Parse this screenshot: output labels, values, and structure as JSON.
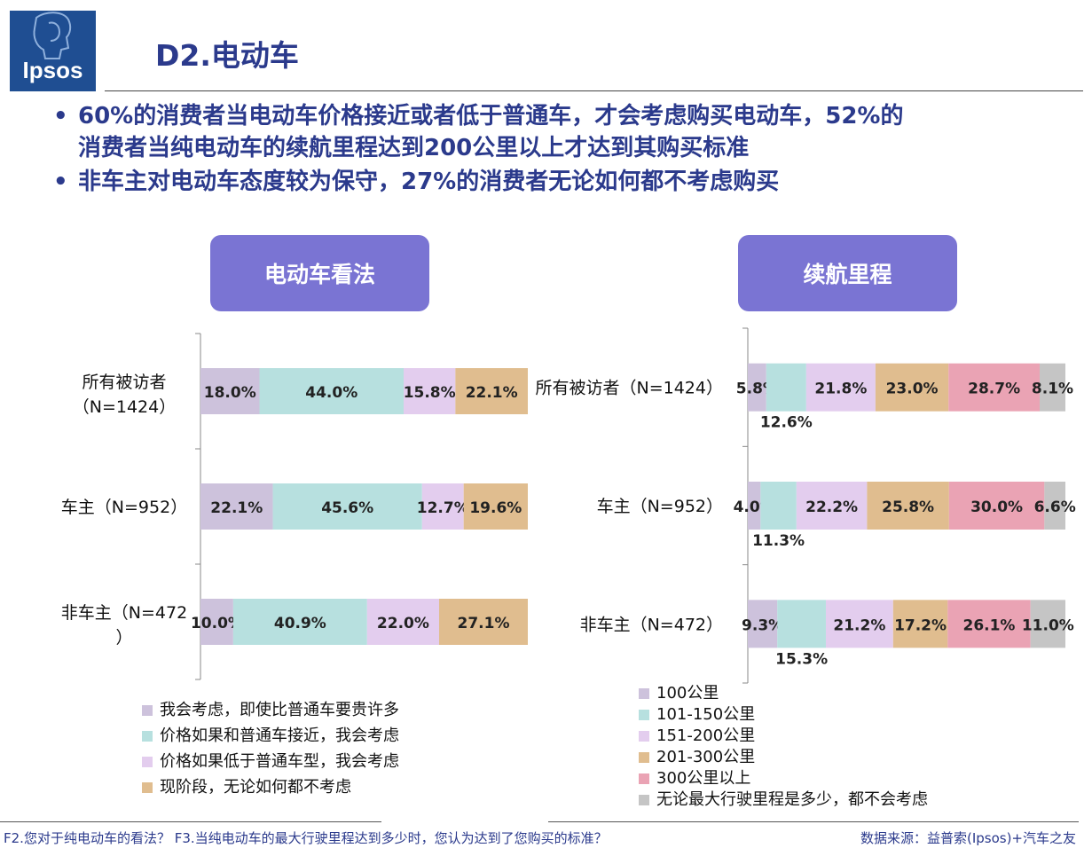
{
  "logo": {
    "text": "Ipsos"
  },
  "header": {
    "title": "D2.电动车"
  },
  "bullets": [
    {
      "line1": "60%的消费者当电动车价格接近或者低于普通车，才会考虑购买电动车，52%的",
      "line2": "消费者当纯电动车的续航里程达到200公里以上才达到其购买标准"
    },
    {
      "line1": "非车主对电动车态度较为保守，27%的消费者无论如何都不考虑购买",
      "line2": ""
    }
  ],
  "bullet_symbol": "•",
  "panels": {
    "left_title": "电动车看法",
    "right_title": "续航里程"
  },
  "chart_data": [
    {
      "type": "bar",
      "orientation": "horizontal-stacked-100",
      "categories": [
        {
          "line1": "所有被访者",
          "line2": "（N=1424）"
        },
        {
          "line1": "车主（N=952）",
          "line2": ""
        },
        {
          "line1": "非车主（N=472",
          "line2": "）"
        }
      ],
      "series": [
        {
          "name": "我会考虑，即使比普通车要贵许多",
          "color": "#cdc2dc",
          "values": [
            18.0,
            22.1,
            10.0
          ],
          "labels": [
            "18.0%",
            "22.1%",
            "10.0%"
          ]
        },
        {
          "name": "价格如果和普通车接近，我会考虑",
          "color": "#b7e0df",
          "values": [
            44.0,
            45.6,
            40.9
          ],
          "labels": [
            "44.0%",
            "45.6%",
            "40.9%"
          ]
        },
        {
          "name": "价格如果低于普通车型，我会考虑",
          "color": "#e3cdee",
          "values": [
            15.8,
            12.7,
            22.0
          ],
          "labels": [
            "15.8%",
            "12.7%",
            "22.0%"
          ]
        },
        {
          "name": "现阶段，无论如何都不考虑",
          "color": "#e0bd8f",
          "values": [
            22.1,
            19.6,
            27.1
          ],
          "labels": [
            "22.1%",
            "19.6%",
            "27.1%"
          ]
        }
      ]
    },
    {
      "type": "bar",
      "orientation": "horizontal-stacked-100",
      "categories": [
        {
          "line1": "所有被访者（N=1424）",
          "line2": ""
        },
        {
          "line1": "车主（N=952）",
          "line2": ""
        },
        {
          "line1": "非车主（N=472）",
          "line2": ""
        }
      ],
      "series": [
        {
          "name": "100公里",
          "color": "#cdc2dc",
          "values": [
            5.8,
            4.0,
            9.3
          ],
          "labels": [
            "5.8%",
            "4.0%",
            "9.3%"
          ]
        },
        {
          "name": "101-150公里",
          "color": "#b7e0df",
          "values": [
            12.6,
            11.3,
            15.3
          ],
          "labels": [
            "12.6%",
            "11.3%",
            "15.3%"
          ]
        },
        {
          "name": "151-200公里",
          "color": "#e3cdee",
          "values": [
            21.8,
            22.2,
            21.2
          ],
          "labels": [
            "21.8%",
            "22.2%",
            "21.2%"
          ]
        },
        {
          "name": "201-300公里",
          "color": "#e0bd8f",
          "values": [
            23.0,
            25.8,
            17.2
          ],
          "labels": [
            "23.0%",
            "25.8%",
            "17.2%"
          ]
        },
        {
          "name": "300公里以上",
          "color": "#eaa3b4",
          "values": [
            28.7,
            30.0,
            26.1
          ],
          "labels": [
            "28.7%",
            "30.0%",
            "26.1%"
          ]
        },
        {
          "name": "无论最大行驶里程是多少，都不会考虑",
          "color": "#c5c5c5",
          "values": [
            8.1,
            6.6,
            11.0
          ],
          "labels": [
            "8.1%",
            "6.6%",
            "11.0%"
          ]
        }
      ]
    }
  ],
  "footer": {
    "question": "F2.您对于纯电动车的看法？ F3.当纯电动车的最大行驶里程达到多少时，您认为达到了您购买的标准？",
    "source": "数据来源：益普索(Ipsos)+汽车之友"
  }
}
